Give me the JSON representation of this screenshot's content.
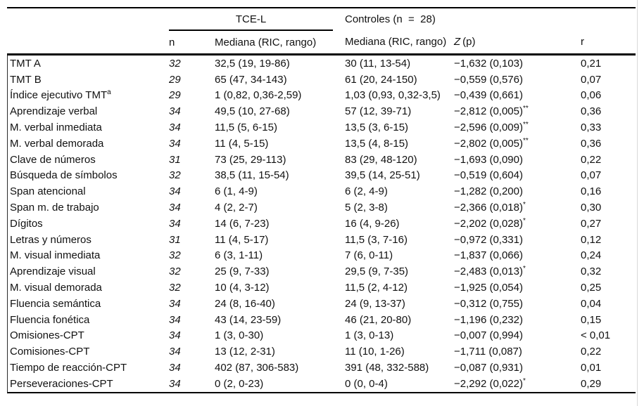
{
  "table": {
    "header": {
      "group_tce": "TCE-L",
      "group_controls": "Controles (n  =  28)",
      "col_n": "n",
      "col_median_tce": "Mediana (RIC, rango)",
      "col_median_ctrl": "Mediana (RIC, rango)",
      "col_z_italic": "Z",
      "col_z_rest": " (p)",
      "col_r": "r"
    },
    "rows": [
      {
        "label": "TMT A",
        "sup": "",
        "n": "32",
        "tce": "32,5 (19, 19-86)",
        "ctrl": "30 (11, 13-54)",
        "z": "−1,632 (0,103)",
        "stars": "",
        "r": "0,21"
      },
      {
        "label": "TMT B",
        "sup": "",
        "n": "29",
        "tce": "65 (47, 34-143)",
        "ctrl": "61 (20, 24-150)",
        "z": "−0,559 (0,576)",
        "stars": "",
        "r": "0,07"
      },
      {
        "label": "Índice ejecutivo TMT",
        "sup": "a",
        "n": "29",
        "tce": "1 (0,82, 0,36-2,59)",
        "ctrl": "1,03 (0,93, 0,32-3,5)",
        "z": "−0,439 (0,661)",
        "stars": "",
        "r": "0,06"
      },
      {
        "label": "Aprendizaje verbal",
        "sup": "",
        "n": "34",
        "tce": "49,5 (10, 27-68)",
        "ctrl": "57 (12, 39-71)",
        "z": "−2,812 (0,005)",
        "stars": "**",
        "r": "0,36"
      },
      {
        "label": "M. verbal inmediata",
        "sup": "",
        "n": "34",
        "tce": "11,5 (5, 6-15)",
        "ctrl": "13,5 (3, 6-15)",
        "z": "−2,596 (0,009)",
        "stars": "**",
        "r": "0,33"
      },
      {
        "label": "M. verbal demorada",
        "sup": "",
        "n": "34",
        "tce": "11 (4, 5-15)",
        "ctrl": "13,5 (4, 8-15)",
        "z": "−2,802 (0,005)",
        "stars": "**",
        "r": "0,36"
      },
      {
        "label": "Clave de números",
        "sup": "",
        "n": "31",
        "tce": "73 (25, 29-113)",
        "ctrl": "83 (29, 48-120)",
        "z": "−1,693 (0,090)",
        "stars": "",
        "r": "0,22"
      },
      {
        "label": "Búsqueda de símbolos",
        "sup": "",
        "n": "32",
        "tce": "38,5 (11, 15-54)",
        "ctrl": "39,5 (14, 25-51)",
        "z": "−0,519 (0,604)",
        "stars": "",
        "r": "0,07"
      },
      {
        "label": "Span atencional",
        "sup": "",
        "n": "34",
        "tce": "6 (1, 4-9)",
        "ctrl": "6 (2, 4-9)",
        "z": "−1,282 (0,200)",
        "stars": "",
        "r": "0,16"
      },
      {
        "label": "Span m. de trabajo",
        "sup": "",
        "n": "34",
        "tce": "4 (2, 2-7)",
        "ctrl": "5 (2, 3-8)",
        "z": "−2,366 (0,018)",
        "stars": "*",
        "r": "0,30"
      },
      {
        "label": "Dígitos",
        "sup": "",
        "n": "34",
        "tce": "14 (6, 7-23)",
        "ctrl": "16 (4, 9-26)",
        "z": "−2,202 (0,028)",
        "stars": "*",
        "r": "0,27"
      },
      {
        "label": "Letras y números",
        "sup": "",
        "n": "31",
        "tce": "11 (4, 5-17)",
        "ctrl": "11,5 (3, 7-16)",
        "z": "−0,972 (0,331)",
        "stars": "",
        "r": "0,12"
      },
      {
        "label": "M. visual inmediata",
        "sup": "",
        "n": "32",
        "tce": "6 (3, 1-11)",
        "ctrl": "7 (6, 0-11)",
        "z": "−1,837 (0,066)",
        "stars": "",
        "r": "0,24"
      },
      {
        "label": "Aprendizaje visual",
        "sup": "",
        "n": "32",
        "tce": "25 (9, 7-33)",
        "ctrl": "29,5 (9, 7-35)",
        "z": "−2,483 (0,013)",
        "stars": "*",
        "r": "0,32"
      },
      {
        "label": "M. visual demorada",
        "sup": "",
        "n": "32",
        "tce": "10 (4, 3-12)",
        "ctrl": "11,5 (2, 4-12)",
        "z": "−1,925 (0,054)",
        "stars": "",
        "r": "0,25"
      },
      {
        "label": "Fluencia semántica",
        "sup": "",
        "n": "34",
        "tce": "24 (8, 16-40)",
        "ctrl": "24 (9, 13-37)",
        "z": "−0,312 (0,755)",
        "stars": "",
        "r": "0,04"
      },
      {
        "label": "Fluencia fonética",
        "sup": "",
        "n": "34",
        "tce": "43 (14, 23-59)",
        "ctrl": "46 (21, 20-80)",
        "z": "−1,196 (0,232)",
        "stars": "",
        "r": "0,15"
      },
      {
        "label": "Omisiones-CPT",
        "sup": "",
        "n": "34",
        "tce": "1 (3, 0-30)",
        "ctrl": "1 (3, 0-13)",
        "z": "−0,007 (0,994)",
        "stars": "",
        "r": "< 0,01"
      },
      {
        "label": "Comisiones-CPT",
        "sup": "",
        "n": "34",
        "tce": "13 (12, 2-31)",
        "ctrl": "11 (10, 1-26)",
        "z": "−1,711 (0,087)",
        "stars": "",
        "r": "0,22"
      },
      {
        "label": "Tiempo de reacción-CPT",
        "sup": "",
        "n": "34",
        "tce": "402 (87, 306-583)",
        "ctrl": "391 (48, 332-588)",
        "z": "−0,087 (0,931)",
        "stars": "",
        "r": "0,01"
      },
      {
        "label": "Perseveraciones-CPT",
        "sup": "",
        "n": "34",
        "tce": "0 (2, 0-23)",
        "ctrl": "0 (0, 0-4)",
        "z": "−2,292 (0,022)",
        "stars": "*",
        "r": "0,29"
      }
    ]
  }
}
